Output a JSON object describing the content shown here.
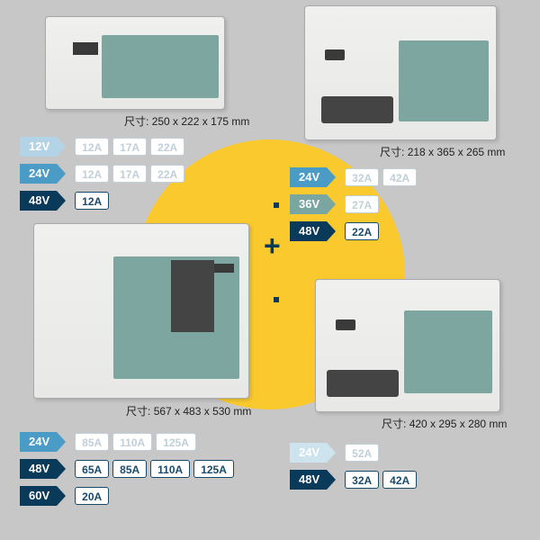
{
  "circle_color": "#f9c92e",
  "plus": "+",
  "devices": {
    "A": {
      "dim_label": "尺寸:",
      "dim": "250 x 222 x 175 mm"
    },
    "B": {
      "dim_label": "尺寸:",
      "dim": "218 x 365 x 265 mm"
    },
    "C": {
      "dim_label": "尺寸:",
      "dim": "567 x 483 x 530 mm"
    },
    "D": {
      "dim_label": "尺寸:",
      "dim": "420 x 295 x 280 mm"
    }
  },
  "groupA": [
    {
      "v": "12V",
      "vclass": "c-lblue",
      "amps": [
        {
          "t": "12A",
          "s": "light"
        },
        {
          "t": "17A",
          "s": "light"
        },
        {
          "t": "22A",
          "s": "light"
        }
      ]
    },
    {
      "v": "24V",
      "vclass": "c-blue",
      "amps": [
        {
          "t": "12A",
          "s": "light"
        },
        {
          "t": "17A",
          "s": "light"
        },
        {
          "t": "22A",
          "s": "light"
        }
      ]
    },
    {
      "v": "48V",
      "vclass": "c-dark",
      "amps": [
        {
          "t": "12A",
          "s": "filled"
        }
      ]
    }
  ],
  "groupB": [
    {
      "v": "24V",
      "vclass": "c-blue",
      "amps": [
        {
          "t": "32A",
          "s": "light"
        },
        {
          "t": "42A",
          "s": "light"
        }
      ]
    },
    {
      "v": "36V",
      "vclass": "c-teal",
      "amps": [
        {
          "t": "27A",
          "s": "light"
        }
      ]
    },
    {
      "v": "48V",
      "vclass": "c-dark",
      "amps": [
        {
          "t": "22A",
          "s": "filled"
        }
      ]
    }
  ],
  "groupC": [
    {
      "v": "24V",
      "vclass": "c-blue",
      "amps": [
        {
          "t": "85A",
          "s": "light"
        },
        {
          "t": "110A",
          "s": "light"
        },
        {
          "t": "125A",
          "s": "light"
        }
      ]
    },
    {
      "v": "48V",
      "vclass": "c-dark",
      "amps": [
        {
          "t": "65A",
          "s": "filled"
        },
        {
          "t": "85A",
          "s": "filled"
        },
        {
          "t": "110A",
          "s": "filled"
        },
        {
          "t": "125A",
          "s": "filled"
        }
      ]
    },
    {
      "v": "60V",
      "vclass": "c-dark",
      "amps": [
        {
          "t": "20A",
          "s": "filled"
        }
      ]
    }
  ],
  "groupD": [
    {
      "v": "24V",
      "vclass": "c-vlb",
      "amps": [
        {
          "t": "52A",
          "s": "light"
        }
      ]
    },
    {
      "v": "48V",
      "vclass": "c-dark",
      "amps": [
        {
          "t": "32A",
          "s": "filled"
        },
        {
          "t": "42A",
          "s": "filled"
        }
      ]
    }
  ]
}
